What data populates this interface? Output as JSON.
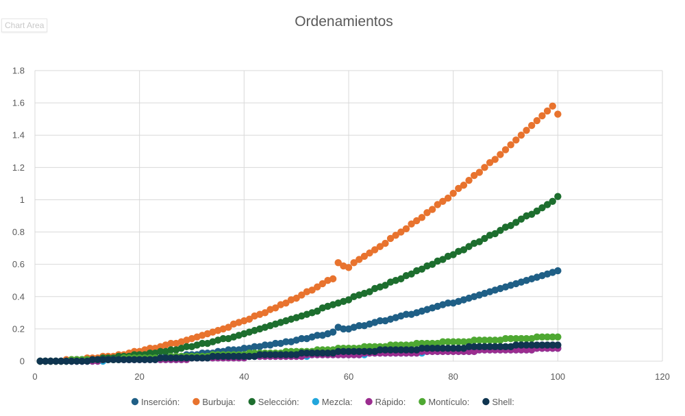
{
  "chart_area_label": "Chart Area",
  "chart_data": {
    "type": "scatter",
    "title": "Ordenamientos",
    "xlabel": "",
    "ylabel": "",
    "xlim": [
      0,
      120
    ],
    "ylim": [
      0,
      1.8
    ],
    "x_ticks": [
      0,
      20,
      40,
      60,
      80,
      100,
      120
    ],
    "y_ticks": [
      0,
      0.2,
      0.4,
      0.6,
      0.8,
      1,
      1.2,
      1.4,
      1.6,
      1.8
    ],
    "grid": true,
    "legend_position": "bottom",
    "x_range": [
      1,
      100
    ],
    "series": [
      {
        "name": "Inserción:",
        "color": "#1f5f86",
        "values": [
          0.0,
          0.0,
          0.0,
          0.0,
          0.0,
          0.0,
          0.0,
          0.0,
          0.0,
          0.01,
          0.01,
          0.01,
          0.01,
          0.01,
          0.01,
          0.01,
          0.01,
          0.01,
          0.02,
          0.02,
          0.02,
          0.02,
          0.02,
          0.02,
          0.03,
          0.03,
          0.03,
          0.03,
          0.04,
          0.04,
          0.04,
          0.05,
          0.05,
          0.05,
          0.06,
          0.06,
          0.07,
          0.07,
          0.07,
          0.08,
          0.08,
          0.09,
          0.09,
          0.1,
          0.1,
          0.11,
          0.11,
          0.12,
          0.12,
          0.13,
          0.14,
          0.14,
          0.15,
          0.16,
          0.16,
          0.17,
          0.18,
          0.21,
          0.2,
          0.2,
          0.21,
          0.22,
          0.22,
          0.23,
          0.24,
          0.25,
          0.25,
          0.26,
          0.27,
          0.28,
          0.29,
          0.29,
          0.3,
          0.31,
          0.32,
          0.33,
          0.34,
          0.35,
          0.36,
          0.36,
          0.37,
          0.38,
          0.39,
          0.4,
          0.41,
          0.42,
          0.43,
          0.44,
          0.45,
          0.46,
          0.47,
          0.48,
          0.49,
          0.5,
          0.51,
          0.52,
          0.53,
          0.54,
          0.55,
          0.56
        ]
      },
      {
        "name": "Burbuja:",
        "color": "#e8732e",
        "values": [
          0.0,
          0.0,
          0.0,
          0.0,
          0.0,
          0.01,
          0.01,
          0.01,
          0.01,
          0.02,
          0.02,
          0.02,
          0.03,
          0.03,
          0.03,
          0.04,
          0.04,
          0.05,
          0.06,
          0.06,
          0.07,
          0.08,
          0.08,
          0.09,
          0.1,
          0.11,
          0.11,
          0.12,
          0.13,
          0.14,
          0.15,
          0.16,
          0.17,
          0.18,
          0.19,
          0.2,
          0.21,
          0.23,
          0.24,
          0.25,
          0.26,
          0.28,
          0.29,
          0.3,
          0.32,
          0.33,
          0.35,
          0.36,
          0.38,
          0.39,
          0.41,
          0.43,
          0.44,
          0.46,
          0.48,
          0.5,
          0.51,
          0.61,
          0.59,
          0.58,
          0.61,
          0.63,
          0.65,
          0.67,
          0.69,
          0.71,
          0.73,
          0.76,
          0.78,
          0.8,
          0.82,
          0.85,
          0.87,
          0.89,
          0.92,
          0.94,
          0.97,
          0.99,
          1.01,
          1.04,
          1.07,
          1.09,
          1.12,
          1.15,
          1.17,
          1.2,
          1.23,
          1.25,
          1.28,
          1.31,
          1.34,
          1.37,
          1.4,
          1.43,
          1.46,
          1.49,
          1.52,
          1.55,
          1.58,
          1.53
        ]
      },
      {
        "name": "Selección:",
        "color": "#1d6e2e",
        "values": [
          0.0,
          0.0,
          0.0,
          0.0,
          0.0,
          0.0,
          0.0,
          0.01,
          0.01,
          0.01,
          0.01,
          0.01,
          0.02,
          0.02,
          0.02,
          0.03,
          0.03,
          0.03,
          0.04,
          0.04,
          0.04,
          0.05,
          0.05,
          0.06,
          0.06,
          0.07,
          0.07,
          0.08,
          0.09,
          0.09,
          0.1,
          0.11,
          0.11,
          0.12,
          0.13,
          0.14,
          0.14,
          0.15,
          0.16,
          0.17,
          0.18,
          0.19,
          0.2,
          0.21,
          0.22,
          0.23,
          0.24,
          0.25,
          0.26,
          0.27,
          0.28,
          0.29,
          0.3,
          0.31,
          0.33,
          0.34,
          0.35,
          0.36,
          0.37,
          0.38,
          0.4,
          0.41,
          0.42,
          0.43,
          0.45,
          0.46,
          0.47,
          0.49,
          0.5,
          0.51,
          0.53,
          0.54,
          0.56,
          0.57,
          0.59,
          0.6,
          0.62,
          0.63,
          0.65,
          0.66,
          0.68,
          0.69,
          0.71,
          0.73,
          0.74,
          0.76,
          0.78,
          0.79,
          0.81,
          0.83,
          0.84,
          0.86,
          0.88,
          0.9,
          0.91,
          0.93,
          0.95,
          0.97,
          0.99,
          1.02
        ]
      },
      {
        "name": "Mezcla:",
        "color": "#22a6dc",
        "values": [
          0.0,
          0.0,
          0.0,
          0.0,
          0.0,
          0.0,
          0.0,
          0.0,
          0.0,
          0.0,
          0.0,
          0.0,
          0.0,
          0.01,
          0.01,
          0.01,
          0.01,
          0.01,
          0.01,
          0.01,
          0.01,
          0.01,
          0.01,
          0.01,
          0.01,
          0.01,
          0.01,
          0.01,
          0.02,
          0.02,
          0.02,
          0.02,
          0.02,
          0.02,
          0.02,
          0.02,
          0.02,
          0.02,
          0.02,
          0.02,
          0.03,
          0.03,
          0.03,
          0.03,
          0.03,
          0.03,
          0.03,
          0.03,
          0.03,
          0.03,
          0.03,
          0.03,
          0.04,
          0.04,
          0.04,
          0.04,
          0.04,
          0.04,
          0.04,
          0.04,
          0.04,
          0.04,
          0.04,
          0.05,
          0.05,
          0.05,
          0.05,
          0.05,
          0.05,
          0.05,
          0.05,
          0.05,
          0.05,
          0.05,
          0.06,
          0.06,
          0.06,
          0.06,
          0.06,
          0.06,
          0.06,
          0.06,
          0.06,
          0.06,
          0.07,
          0.07,
          0.07,
          0.07,
          0.07,
          0.07,
          0.07,
          0.07,
          0.07,
          0.07,
          0.07,
          0.08,
          0.08,
          0.08,
          0.08,
          0.08
        ]
      },
      {
        "name": "Rápido:",
        "color": "#9b2d8f",
        "values": [
          0.0,
          0.0,
          0.0,
          0.0,
          0.0,
          0.0,
          0.0,
          0.0,
          0.0,
          0.0,
          0.0,
          0.0,
          0.01,
          0.01,
          0.01,
          0.01,
          0.01,
          0.01,
          0.01,
          0.01,
          0.01,
          0.01,
          0.01,
          0.01,
          0.01,
          0.01,
          0.01,
          0.01,
          0.01,
          0.02,
          0.02,
          0.02,
          0.02,
          0.02,
          0.02,
          0.02,
          0.02,
          0.02,
          0.02,
          0.02,
          0.03,
          0.03,
          0.03,
          0.03,
          0.03,
          0.03,
          0.03,
          0.03,
          0.03,
          0.03,
          0.03,
          0.04,
          0.04,
          0.04,
          0.04,
          0.04,
          0.04,
          0.04,
          0.04,
          0.04,
          0.04,
          0.04,
          0.05,
          0.05,
          0.05,
          0.05,
          0.05,
          0.05,
          0.05,
          0.05,
          0.05,
          0.05,
          0.05,
          0.06,
          0.06,
          0.06,
          0.06,
          0.06,
          0.06,
          0.06,
          0.06,
          0.06,
          0.06,
          0.06,
          0.07,
          0.07,
          0.07,
          0.07,
          0.07,
          0.07,
          0.07,
          0.07,
          0.07,
          0.07,
          0.07,
          0.08,
          0.08,
          0.08,
          0.08,
          0.08
        ]
      },
      {
        "name": "Montículo:",
        "color": "#4ea832",
        "values": [
          0.0,
          0.0,
          0.0,
          0.0,
          0.0,
          0.0,
          0.01,
          0.01,
          0.01,
          0.01,
          0.01,
          0.01,
          0.01,
          0.01,
          0.01,
          0.01,
          0.02,
          0.02,
          0.02,
          0.02,
          0.02,
          0.02,
          0.02,
          0.02,
          0.02,
          0.03,
          0.03,
          0.03,
          0.03,
          0.03,
          0.03,
          0.03,
          0.03,
          0.04,
          0.04,
          0.04,
          0.04,
          0.04,
          0.04,
          0.04,
          0.05,
          0.05,
          0.05,
          0.05,
          0.05,
          0.05,
          0.05,
          0.06,
          0.06,
          0.06,
          0.06,
          0.06,
          0.06,
          0.07,
          0.07,
          0.07,
          0.07,
          0.08,
          0.08,
          0.08,
          0.08,
          0.08,
          0.09,
          0.09,
          0.09,
          0.09,
          0.09,
          0.1,
          0.1,
          0.1,
          0.1,
          0.1,
          0.11,
          0.11,
          0.11,
          0.11,
          0.11,
          0.12,
          0.12,
          0.12,
          0.12,
          0.12,
          0.12,
          0.13,
          0.13,
          0.13,
          0.13,
          0.13,
          0.13,
          0.14,
          0.14,
          0.14,
          0.14,
          0.14,
          0.14,
          0.15,
          0.15,
          0.15,
          0.15,
          0.15
        ]
      },
      {
        "name": "Shell:",
        "color": "#0f3550",
        "values": [
          0.0,
          0.0,
          0.0,
          0.0,
          0.0,
          0.0,
          0.0,
          0.0,
          0.0,
          0.0,
          0.01,
          0.01,
          0.01,
          0.01,
          0.01,
          0.01,
          0.01,
          0.01,
          0.01,
          0.01,
          0.01,
          0.01,
          0.01,
          0.02,
          0.02,
          0.02,
          0.02,
          0.02,
          0.02,
          0.02,
          0.02,
          0.02,
          0.02,
          0.03,
          0.03,
          0.03,
          0.03,
          0.03,
          0.03,
          0.03,
          0.03,
          0.03,
          0.04,
          0.04,
          0.04,
          0.04,
          0.04,
          0.04,
          0.04,
          0.04,
          0.05,
          0.05,
          0.05,
          0.05,
          0.05,
          0.05,
          0.05,
          0.06,
          0.06,
          0.06,
          0.06,
          0.06,
          0.06,
          0.06,
          0.06,
          0.07,
          0.07,
          0.07,
          0.07,
          0.07,
          0.07,
          0.07,
          0.07,
          0.08,
          0.08,
          0.08,
          0.08,
          0.08,
          0.08,
          0.08,
          0.08,
          0.08,
          0.09,
          0.09,
          0.09,
          0.09,
          0.09,
          0.09,
          0.09,
          0.09,
          0.09,
          0.1,
          0.1,
          0.1,
          0.1,
          0.1,
          0.1,
          0.1,
          0.1,
          0.1
        ]
      }
    ]
  }
}
